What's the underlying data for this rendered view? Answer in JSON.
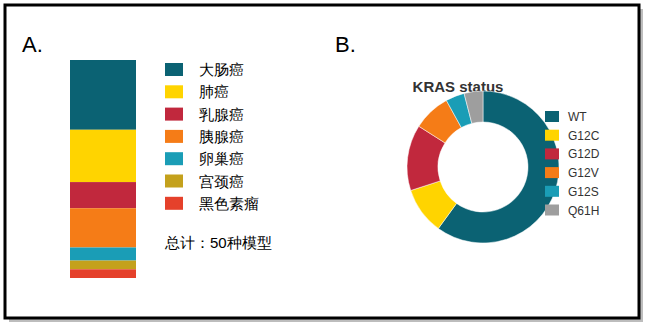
{
  "chart_data": [
    {
      "type": "bar",
      "stacked": true,
      "annotations": [
        "A.",
        "总计：50种模型"
      ],
      "categories": [
        null
      ],
      "ylim": [
        0,
        50
      ],
      "tick_labels": false,
      "legend": "right",
      "series": [
        {
          "name": "大肠癌",
          "color": "#0b6273",
          "values": [
            16
          ]
        },
        {
          "name": "肺癌",
          "color": "#ffd400",
          "values": [
            12
          ]
        },
        {
          "name": "乳腺癌",
          "color": "#c1283d",
          "values": [
            6
          ]
        },
        {
          "name": "胰腺癌",
          "color": "#f57c17",
          "values": [
            9
          ]
        },
        {
          "name": "卵巢癌",
          "color": "#1a9db6",
          "values": [
            3
          ]
        },
        {
          "name": "宫颈癌",
          "color": "#c4a11c",
          "values": [
            2
          ]
        },
        {
          "name": "黑色素瘤",
          "color": "#e5412b",
          "values": [
            2
          ]
        }
      ]
    },
    {
      "type": "pie",
      "title": "KRAS status",
      "annotations": [
        "B."
      ],
      "legend": "right",
      "categories": [
        "WT",
        "G12C",
        "G12D",
        "G12V",
        "G12S",
        "Q61H"
      ],
      "values": [
        30,
        5,
        7,
        4,
        2,
        2
      ],
      "colors": [
        "#0b6273",
        "#ffd400",
        "#c1283d",
        "#f57c17",
        "#1a9db6",
        "#9e9e9e"
      ]
    }
  ]
}
